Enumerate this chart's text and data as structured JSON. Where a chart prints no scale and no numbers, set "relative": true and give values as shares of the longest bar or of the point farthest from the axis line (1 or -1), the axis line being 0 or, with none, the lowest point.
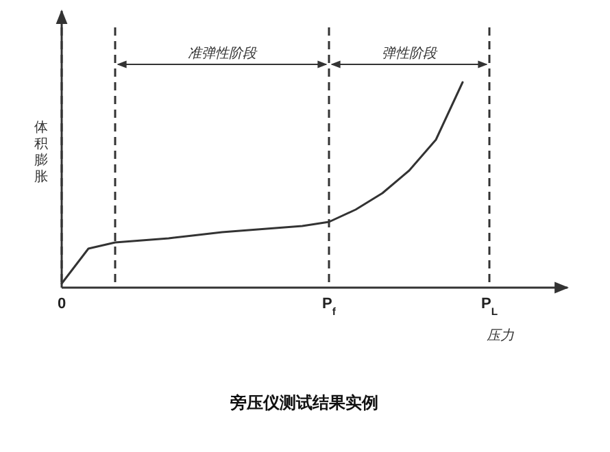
{
  "chart_data": {
    "type": "line",
    "relative": true,
    "title": "旁压仪测试结果实例",
    "xlabel": "压力",
    "ylabel": "体积膨胀",
    "categories": [
      "0",
      null,
      null,
      null,
      null,
      null,
      null,
      null,
      null,
      null,
      "P$_{f}$",
      null,
      null,
      null,
      null,
      null,
      "P$_{L}$"
    ],
    "series": [
      {
        "color": "#333333",
        "values": [
          0.02,
          0.19,
          0.22,
          0.23,
          0.24,
          0.255,
          0.27,
          0.28,
          0.29,
          0.3,
          0.32,
          0.38,
          0.46,
          0.57,
          0.72,
          1.0,
          null
        ]
      }
    ],
    "grid": "x",
    "annotations": [
      "准弹性阶段",
      "弹性阶段"
    ],
    "tick_labels": "x",
    "marker": "none",
    "line_style": "solid"
  }
}
